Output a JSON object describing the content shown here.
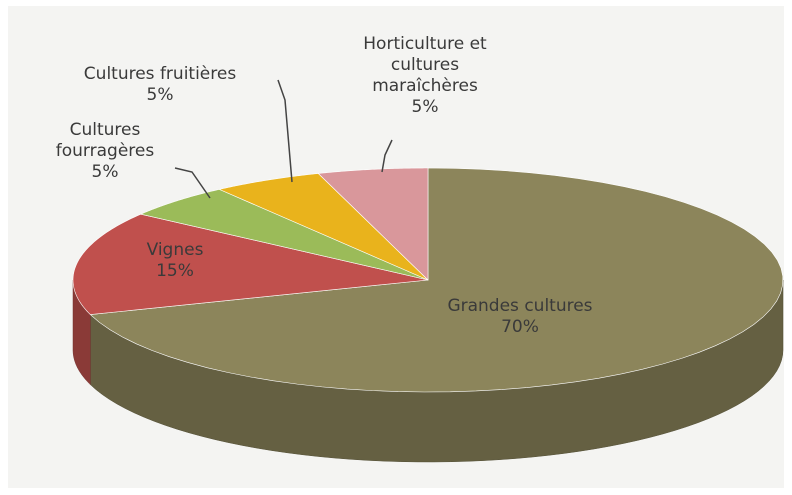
{
  "chart_data": {
    "type": "pie",
    "categories": [
      "Grandes cultures",
      "Vignes",
      "Cultures fourragères",
      "Cultures fruitières",
      "Horticulture et cultures maraîchères"
    ],
    "values": [
      70,
      15,
      5,
      5,
      5
    ],
    "value_labels": [
      "70%",
      "15%",
      "5%",
      "5%",
      "5%"
    ],
    "colors": [
      "#8c855b",
      "#c0504d",
      "#9bbb59",
      "#e9b31c",
      "#d9979b"
    ]
  }
}
